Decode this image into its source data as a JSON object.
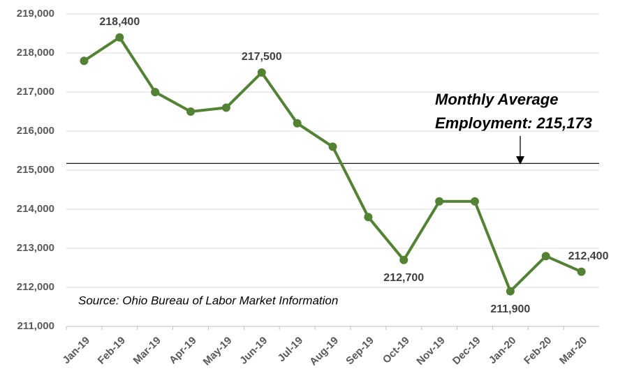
{
  "chart_data": {
    "type": "line",
    "categories": [
      "Jan-19",
      "Feb-19",
      "Mar-19",
      "Apr-19",
      "May-19",
      "Jun-19",
      "Jul-19",
      "Aug-19",
      "Sep-19",
      "Oct-19",
      "Nov-19",
      "Dec-19",
      "Jan-20",
      "Feb-20",
      "Mar-20"
    ],
    "series": [
      {
        "name": "Employment",
        "color": "#548235",
        "values": [
          217800,
          218400,
          217000,
          216500,
          216600,
          217500,
          216200,
          215600,
          213800,
          212700,
          214200,
          214200,
          211900,
          212800,
          212400
        ],
        "value_labels": [
          null,
          "218,400",
          null,
          null,
          null,
          "217,500",
          null,
          null,
          null,
          "212,700",
          null,
          null,
          "211,900",
          null,
          "212,400"
        ]
      }
    ],
    "ylim": [
      211000,
      219000
    ],
    "yticks": [
      {
        "value": 211000,
        "label": "211,000"
      },
      {
        "value": 212000,
        "label": "212,000"
      },
      {
        "value": 213000,
        "label": "213,000"
      },
      {
        "value": 214000,
        "label": "214,000"
      },
      {
        "value": 215000,
        "label": "215,000"
      },
      {
        "value": 216000,
        "label": "216,000"
      },
      {
        "value": 217000,
        "label": "217,000"
      },
      {
        "value": 218000,
        "label": "218,000"
      },
      {
        "value": 219000,
        "label": "219,000"
      }
    ],
    "grid": true,
    "average_line": 215173,
    "annotation": [
      "Monthly Average",
      "Employment: 215,173"
    ],
    "source": "Source: Ohio Bureau of Labor Market Information"
  }
}
